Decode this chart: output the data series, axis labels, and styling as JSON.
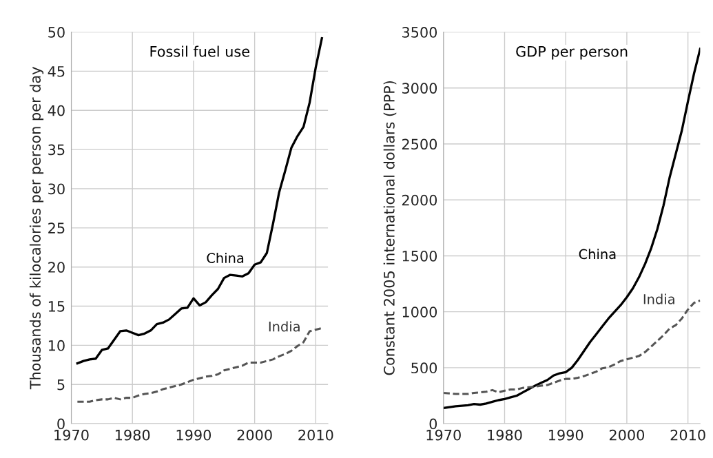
{
  "chart_data": [
    {
      "type": "line",
      "title": "Fossil fuel use",
      "ylabel": "Thousands of kilocalories per person per day",
      "xlim": [
        1970,
        2012
      ],
      "xticks": [
        1970,
        1980,
        1990,
        2000,
        2010
      ],
      "ylim": [
        0,
        50
      ],
      "yticks": [
        0,
        5,
        10,
        15,
        20,
        25,
        30,
        35,
        40,
        45,
        50
      ],
      "grid": true,
      "legend": false,
      "marker": "none",
      "x": [
        1971,
        1972,
        1973,
        1974,
        1975,
        1976,
        1977,
        1978,
        1979,
        1980,
        1981,
        1982,
        1983,
        1984,
        1985,
        1986,
        1987,
        1988,
        1989,
        1990,
        1991,
        1992,
        1993,
        1994,
        1995,
        1996,
        1997,
        1998,
        1999,
        2000,
        2001,
        2002,
        2003,
        2004,
        2005,
        2006,
        2007,
        2008,
        2009,
        2010,
        2011
      ],
      "series": [
        {
          "name": "China",
          "color": "#000000",
          "line_style": "solid",
          "values": [
            7.7,
            8.0,
            8.2,
            8.3,
            9.4,
            9.6,
            10.7,
            11.8,
            11.9,
            11.6,
            11.3,
            11.5,
            11.9,
            12.7,
            12.9,
            13.3,
            14.0,
            14.7,
            14.8,
            16.0,
            15.1,
            15.5,
            16.4,
            17.2,
            18.6,
            19.0,
            18.9,
            18.8,
            19.2,
            20.3,
            20.6,
            21.8,
            25.5,
            29.5,
            32.3,
            35.2,
            36.7,
            37.9,
            41.0,
            45.5,
            49.2
          ]
        },
        {
          "name": "India",
          "color": "#555555",
          "line_style": "dashed",
          "values": [
            2.8,
            2.8,
            2.8,
            3.0,
            3.1,
            3.1,
            3.3,
            3.1,
            3.3,
            3.3,
            3.6,
            3.8,
            3.9,
            4.1,
            4.4,
            4.6,
            4.8,
            5.0,
            5.3,
            5.6,
            5.8,
            6.0,
            6.1,
            6.3,
            6.8,
            7.0,
            7.2,
            7.4,
            7.8,
            7.8,
            7.8,
            8.0,
            8.2,
            8.6,
            8.9,
            9.3,
            9.9,
            10.4,
            11.8,
            12.0,
            12.2
          ]
        }
      ]
    },
    {
      "type": "line",
      "title": "GDP per person",
      "ylabel": "Constant 2005 international dollars (PPP)",
      "xlim": [
        1970,
        2012
      ],
      "xticks": [
        1970,
        1980,
        1990,
        2000,
        2010
      ],
      "ylim": [
        0,
        3500
      ],
      "yticks": [
        0,
        500,
        1000,
        1500,
        2000,
        2500,
        3000,
        3500
      ],
      "grid": true,
      "legend": false,
      "marker": "none",
      "x": [
        1970,
        1972,
        1974,
        1975,
        1976,
        1977,
        1978,
        1979,
        1980,
        1981,
        1982,
        1983,
        1984,
        1985,
        1986,
        1987,
        1988,
        1989,
        1990,
        1991,
        1992,
        1993,
        1994,
        1995,
        1996,
        1997,
        1998,
        1999,
        2000,
        2001,
        2002,
        2003,
        2004,
        2005,
        2006,
        2007,
        2008,
        2009,
        2010,
        2011,
        2012
      ],
      "series": [
        {
          "name": "China",
          "color": "#000000",
          "line_style": "solid",
          "values": [
            140,
            155,
            165,
            175,
            170,
            180,
            195,
            210,
            220,
            235,
            250,
            280,
            310,
            340,
            365,
            390,
            430,
            450,
            460,
            500,
            570,
            650,
            730,
            800,
            870,
            940,
            1000,
            1060,
            1130,
            1210,
            1310,
            1430,
            1570,
            1740,
            1950,
            2200,
            2410,
            2620,
            2880,
            3130,
            3350
          ]
        },
        {
          "name": "India",
          "color": "#555555",
          "line_style": "dashed",
          "values": [
            275,
            265,
            265,
            275,
            280,
            285,
            300,
            280,
            295,
            305,
            305,
            320,
            325,
            330,
            340,
            345,
            365,
            385,
            400,
            400,
            410,
            425,
            445,
            465,
            495,
            505,
            530,
            560,
            575,
            590,
            605,
            640,
            690,
            740,
            790,
            850,
            880,
            940,
            1020,
            1080,
            1100
          ]
        }
      ]
    }
  ]
}
